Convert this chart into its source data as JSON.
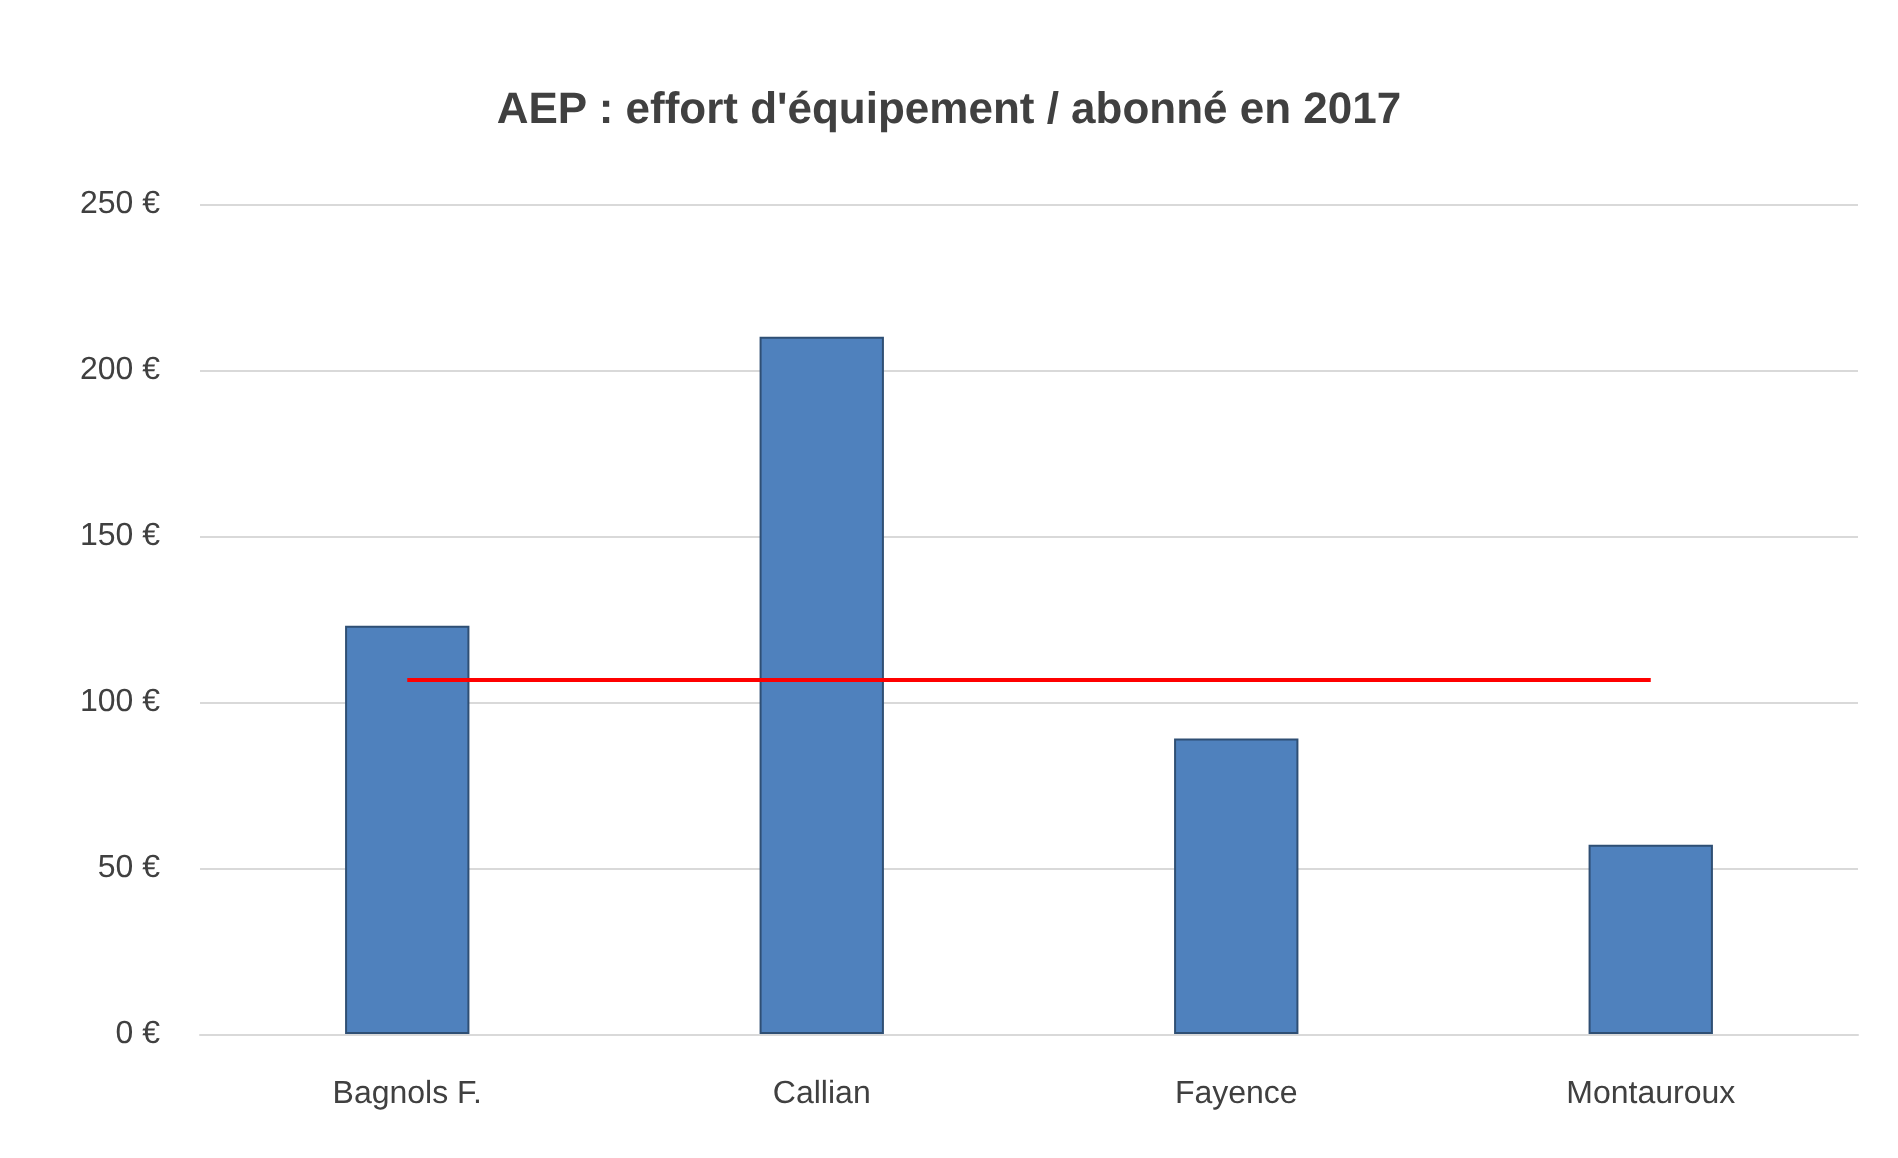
{
  "chart_data": {
    "type": "bar",
    "title": "AEP : effort d'équipement / abonné en 2017",
    "categories": [
      "Bagnols F.",
      "Callian",
      "Fayence",
      "Montauroux"
    ],
    "values": [
      123,
      210,
      89,
      57
    ],
    "color": "#4f81bd",
    "ylim": [
      0,
      250
    ],
    "yticks": [
      {
        "value": 0,
        "label": "0 €"
      },
      {
        "value": 50,
        "label": "50 €"
      },
      {
        "value": 100,
        "label": "100 €"
      },
      {
        "value": 150,
        "label": "150 €"
      },
      {
        "value": 200,
        "label": "200 €"
      },
      {
        "value": 250,
        "label": "250 €"
      }
    ],
    "grid": "y",
    "ref_lines": [
      {
        "axis": "y",
        "value": 107,
        "color": "#ff0000"
      }
    ]
  }
}
